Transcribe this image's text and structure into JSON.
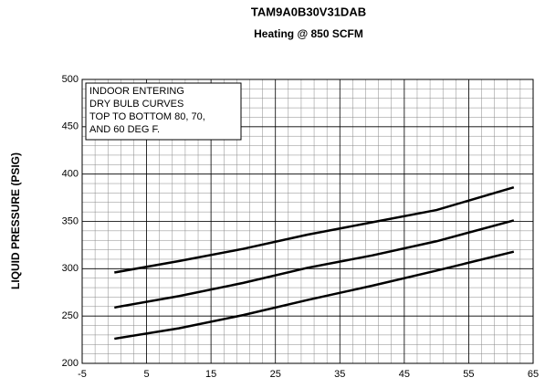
{
  "chart_data": {
    "type": "line",
    "title": "TAM9A0B30V31DAB",
    "subtitle": "Heating @ 850 SCFM",
    "y_label": "LIQUID PRESSURE (PSIG)",
    "annotation": [
      "INDOOR ENTERING",
      "DRY BULB CURVES",
      "TOP TO BOTTOM 80, 70,",
      "AND 60 DEG F."
    ],
    "x": [
      0,
      10,
      20,
      30,
      40,
      50,
      62
    ],
    "series": [
      {
        "color": "#000000",
        "values": [
          296,
          308,
          321,
          336,
          349,
          362,
          386
        ]
      },
      {
        "color": "#000000",
        "values": [
          259,
          271,
          285,
          301,
          314,
          329,
          351
        ]
      },
      {
        "color": "#000000",
        "values": [
          226,
          237,
          251,
          267,
          282,
          298,
          318
        ]
      }
    ],
    "xlim": [
      -5,
      65
    ],
    "xticks": [
      -5,
      5,
      15,
      25,
      35,
      45,
      55,
      65
    ],
    "ylim": [
      200,
      500
    ],
    "yticks": [
      200,
      250,
      300,
      350,
      400,
      450,
      500
    ],
    "grid": true
  }
}
